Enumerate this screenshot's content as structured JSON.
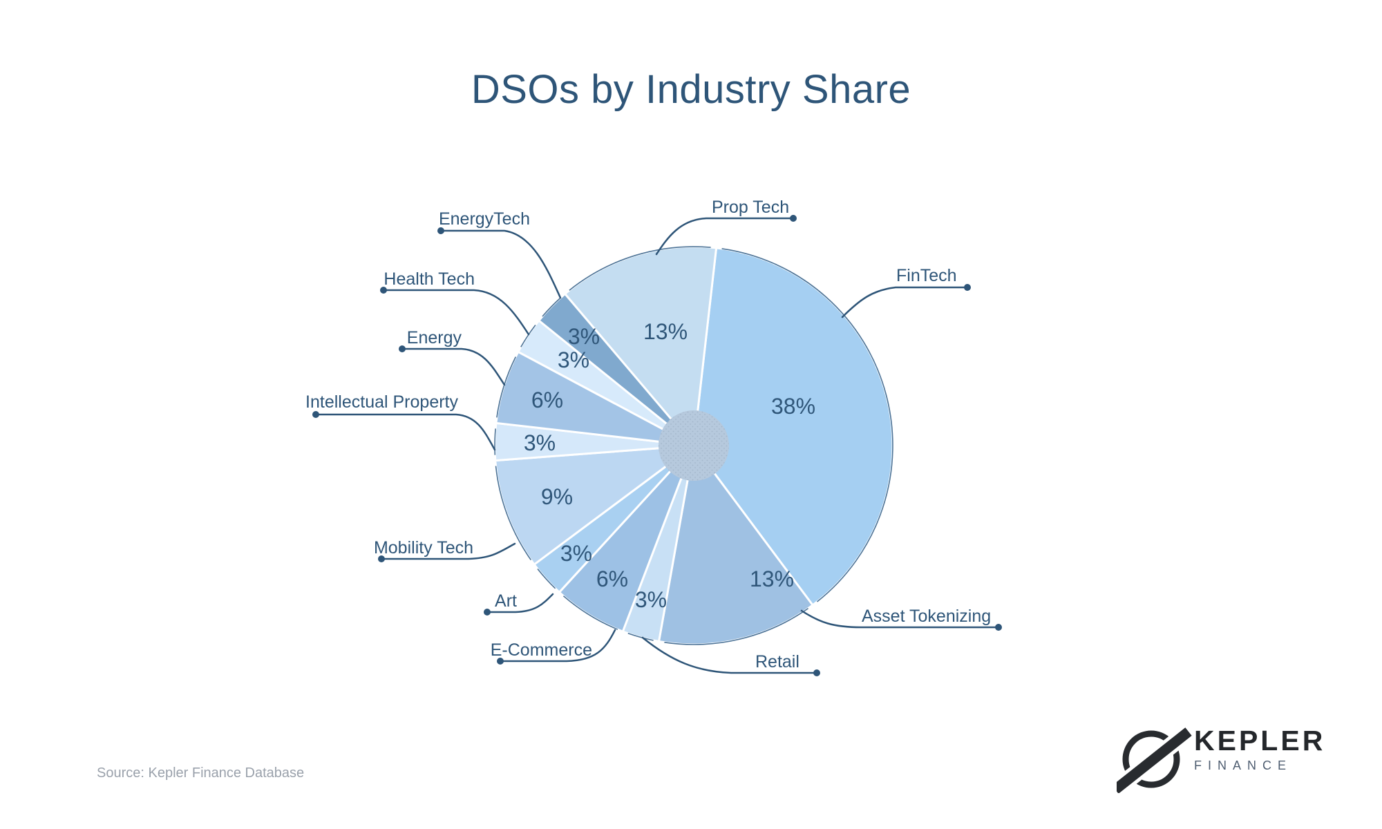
{
  "title": "DSOs by Industry Share",
  "source": "Source: Kepler Finance Database",
  "logo": {
    "name": "KEPLER",
    "sub": "FINANCE"
  },
  "colors": {
    "title_text": "#2e5578",
    "category_label_text": "#2e5578",
    "percent_label_text": "#2f5679",
    "leader_line": "#2e5578",
    "pie_rim": "#4b7296",
    "slice_gap": "#ffffff",
    "center_hub_fill": "#b6c9dd",
    "center_hub_dots": "#a3b6cb",
    "source_text": "#9aa1ab",
    "logo_mark": "#282b2f",
    "logo_sub_text": "#4e5d70"
  },
  "chart_data": {
    "type": "pie",
    "title": "DSOs by Industry Share",
    "direction": "clockwise",
    "start_angle_deg": 6.5,
    "legend": "none",
    "donut_hub": true,
    "slices": [
      {
        "label": "FinTech",
        "value": 38,
        "percent_label": "38%",
        "color": "#a5cff2"
      },
      {
        "label": "Asset Tokenizing",
        "value": 13,
        "percent_label": "13%",
        "color": "#9fc1e3"
      },
      {
        "label": "Retail",
        "value": 3,
        "percent_label": "3%",
        "color": "#c8e0f5"
      },
      {
        "label": "E-Commerce",
        "value": 6,
        "percent_label": "6%",
        "color": "#9dc1e5"
      },
      {
        "label": "Art",
        "value": 3,
        "percent_label": "3%",
        "color": "#a9d0f1"
      },
      {
        "label": "Mobility Tech",
        "value": 9,
        "percent_label": "9%",
        "color": "#bcd7f2"
      },
      {
        "label": "Intellectual Property",
        "value": 3,
        "percent_label": "3%",
        "color": "#d5e8fa"
      },
      {
        "label": "Energy",
        "value": 6,
        "percent_label": "6%",
        "color": "#a3c4e6"
      },
      {
        "label": "Health Tech",
        "value": 3,
        "percent_label": "3%",
        "color": "#d7eafb"
      },
      {
        "label": "EnergyTech",
        "value": 3,
        "percent_label": "3%",
        "color": "#80a9ce"
      },
      {
        "label": "Prop Tech",
        "value": 13,
        "percent_label": "13%",
        "color": "#c4ddf1"
      }
    ]
  }
}
